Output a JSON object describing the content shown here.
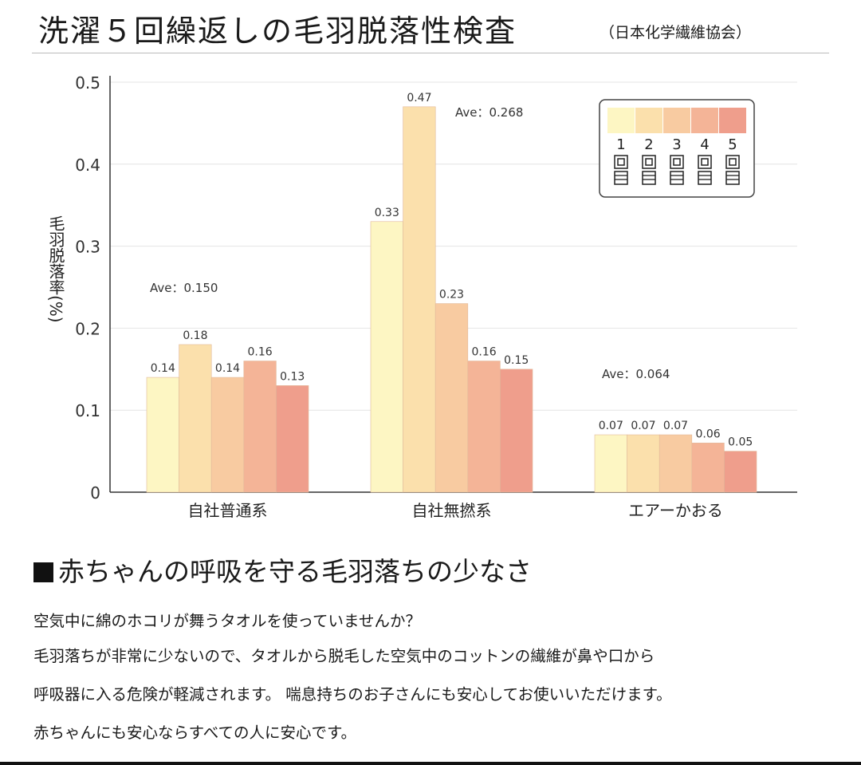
{
  "header": {
    "title": "洗濯５回繰返しの毛羽脱落性検査",
    "subtitle": "（日本化学繊維協会）"
  },
  "chart_data": {
    "type": "bar",
    "ylabel": "毛羽脱落率(%)",
    "ylim": [
      0,
      0.5
    ],
    "yticks": [
      "0",
      "0.1",
      "0.2",
      "0.3",
      "0.4",
      "0.5"
    ],
    "categories": [
      "自社普通系",
      "自社無撚系",
      "エアーかおる"
    ],
    "series": [
      {
        "name": "1回目",
        "values": [
          0.14,
          0.33,
          0.07
        ]
      },
      {
        "name": "2回目",
        "values": [
          0.18,
          0.47,
          0.07
        ]
      },
      {
        "name": "3回目",
        "values": [
          0.14,
          0.23,
          0.07
        ]
      },
      {
        "name": "4回目",
        "values": [
          0.16,
          0.16,
          0.06
        ]
      },
      {
        "name": "5回目",
        "values": [
          0.13,
          0.15,
          0.05
        ]
      }
    ],
    "averages": [
      "Ave：0.150",
      "Ave：0.268",
      "Ave：0.064"
    ],
    "series_colors": [
      "#fdf6c3",
      "#fbe0ac",
      "#f8cba1",
      "#f4b497",
      "#ef9e8c"
    ],
    "grid": true,
    "legend_position": "top-right"
  },
  "section": {
    "heading": "赤ちゃんの呼吸を守る毛羽落ちの少なさ",
    "paragraphs": [
      "空気中に綿のホコリが舞うタオルを使っていませんか？",
      "毛羽落ちが非常に少ないので、タオルから脱毛した空気中のコットンの繊維が鼻や口から",
      "呼吸器に入る危険が軽減されます。 喘息持ちのお子さんにも安心してお使いいただけます。",
      "赤ちゃんにも安心ならすべての人に安心です。"
    ]
  }
}
